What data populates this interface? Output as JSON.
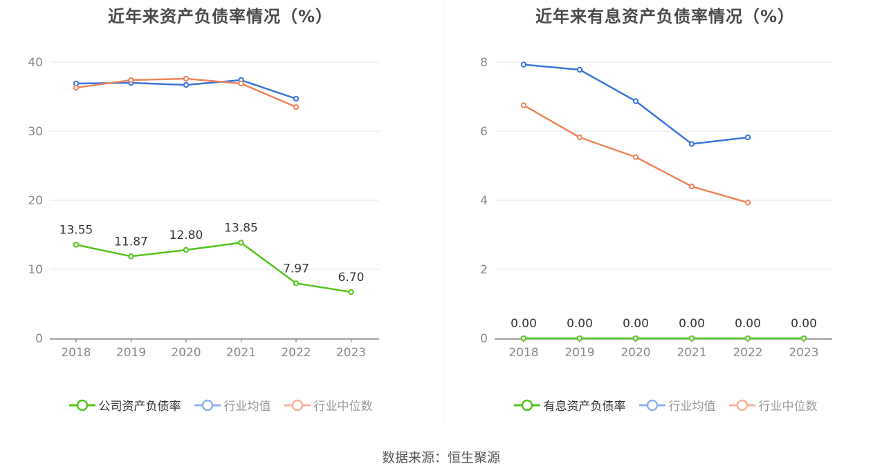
{
  "source_text": "数据来源：恒生聚源",
  "chart_data": [
    {
      "type": "line",
      "title": "近年来资产负债率情况（%）",
      "categories": [
        "2018",
        "2019",
        "2020",
        "2021",
        "2022",
        "2023"
      ],
      "ylim": [
        0,
        40
      ],
      "yticks": [
        0,
        10,
        20,
        30,
        40
      ],
      "grid": true,
      "legend_position": "bottom",
      "series": [
        {
          "name": "公司资产负债率",
          "color": "#52c41a",
          "values": [
            13.55,
            11.87,
            12.8,
            13.85,
            7.97,
            6.7
          ],
          "labels": [
            "13.55",
            "11.87",
            "12.80",
            "13.85",
            "7.97",
            "6.70"
          ]
        },
        {
          "name": "行业均值",
          "color": "#3a74db",
          "legend_color": "#8fb0ea",
          "values": [
            36.9,
            37.0,
            36.7,
            37.4,
            34.7,
            null
          ]
        },
        {
          "name": "行业中位数",
          "color": "#f0845a",
          "legend_color": "#f6b497",
          "values": [
            36.3,
            37.4,
            37.6,
            36.9,
            33.5,
            null
          ]
        }
      ]
    },
    {
      "type": "line",
      "title": "近年来有息资产负债率情况（%）",
      "categories": [
        "2018",
        "2019",
        "2020",
        "2021",
        "2022",
        "2023"
      ],
      "ylim": [
        0,
        8
      ],
      "yticks": [
        0,
        2,
        4,
        6,
        8
      ],
      "grid": true,
      "legend_position": "bottom",
      "series": [
        {
          "name": "有息资产负债率",
          "color": "#52c41a",
          "values": [
            0,
            0,
            0,
            0,
            0,
            0
          ],
          "labels": [
            "0.00",
            "0.00",
            "0.00",
            "0.00",
            "0.00",
            "0.00"
          ]
        },
        {
          "name": "行业均值",
          "color": "#3a74db",
          "legend_color": "#8fb0ea",
          "values": [
            7.93,
            7.78,
            6.87,
            5.63,
            5.82,
            null
          ]
        },
        {
          "name": "行业中位数",
          "color": "#f0845a",
          "legend_color": "#f6b497",
          "values": [
            6.75,
            5.82,
            5.25,
            4.4,
            3.93,
            null
          ]
        }
      ]
    }
  ]
}
